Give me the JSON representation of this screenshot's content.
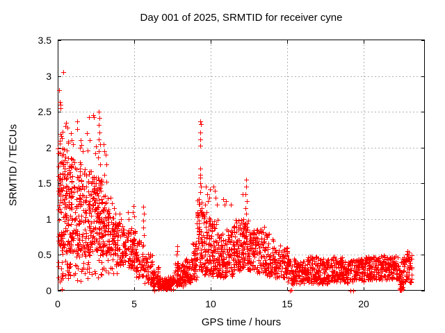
{
  "title": "Day 001 of 2025, SRMTID for receiver cyne",
  "chart_data": {
    "type": "scatter",
    "title": "Day 001 of 2025, SRMTID for receiver cyne",
    "xlabel": "GPS time / hours",
    "ylabel": "SRMTID / TECUs",
    "xlim": [
      0,
      24
    ],
    "ylim": [
      0,
      3.5
    ],
    "xtick_values": [
      0,
      5,
      10,
      15,
      20
    ],
    "xtick_labels": [
      "0",
      "5",
      "10",
      "15",
      "20"
    ],
    "ytick_values": [
      0,
      0.5,
      1,
      1.5,
      2,
      2.5,
      3,
      3.5
    ],
    "ytick_labels": [
      "0",
      "0.5",
      "1",
      "1.5",
      "2",
      "2.5",
      "3",
      "3.5"
    ],
    "grid": true,
    "legend": "none",
    "marker": "plus",
    "marker_size": 7,
    "marker_color": "#ff0000",
    "grid_color": "#b0b0b0",
    "axis_color": "#000000",
    "text_color": "#000000",
    "background": "#ffffff",
    "seed": 11,
    "clusters": [
      {
        "x0": 0.02,
        "x1": 0.3,
        "n": 55,
        "y0": 0.6,
        "y1": 2.2,
        "e": 1.1
      },
      {
        "x0": 0.02,
        "x1": 0.35,
        "n": 12,
        "y0": 0.02,
        "y1": 0.6,
        "e": 1.0
      },
      {
        "x0": 0.3,
        "x1": 0.7,
        "n": 70,
        "y0": 0.55,
        "y1": 2.1,
        "e": 1.2
      },
      {
        "x0": 0.3,
        "x1": 0.7,
        "n": 8,
        "y0": 0.12,
        "y1": 0.55,
        "e": 1.0
      },
      {
        "x0": 0.65,
        "x1": 0.9,
        "n": 12,
        "y0": 0.2,
        "y1": 0.38,
        "e": 1.0
      },
      {
        "x0": 0.7,
        "x1": 1.2,
        "n": 80,
        "y0": 0.55,
        "y1": 1.9,
        "e": 1.2
      },
      {
        "x0": 1.0,
        "x1": 2.0,
        "n": 18,
        "y0": 0.12,
        "y1": 0.5,
        "e": 1.0
      },
      {
        "x0": 1.2,
        "x1": 1.7,
        "n": 75,
        "y0": 0.5,
        "y1": 1.8,
        "e": 1.2
      },
      {
        "x0": 1.7,
        "x1": 2.2,
        "n": 70,
        "y0": 0.5,
        "y1": 1.7,
        "e": 1.2
      },
      {
        "x0": 2.0,
        "x1": 3.0,
        "n": 14,
        "y0": 0.15,
        "y1": 0.5,
        "e": 1.0
      },
      {
        "x0": 2.2,
        "x1": 2.6,
        "n": 65,
        "y0": 0.55,
        "y1": 1.6,
        "e": 1.1
      },
      {
        "x0": 2.6,
        "x1": 2.9,
        "n": 55,
        "y0": 0.55,
        "y1": 1.6,
        "e": 1.1
      },
      {
        "x0": 2.9,
        "x1": 3.3,
        "n": 55,
        "y0": 0.5,
        "y1": 1.35,
        "e": 1.1
      },
      {
        "x0": 3.0,
        "x1": 4.0,
        "n": 10,
        "y0": 0.2,
        "y1": 0.45,
        "e": 1.0
      },
      {
        "x0": 3.3,
        "x1": 3.8,
        "n": 55,
        "y0": 0.5,
        "y1": 1.1,
        "e": 1.1
      },
      {
        "x0": 3.8,
        "x1": 4.3,
        "n": 50,
        "y0": 0.35,
        "y1": 0.95,
        "e": 1.1
      },
      {
        "x0": 4.3,
        "x1": 4.8,
        "n": 45,
        "y0": 0.3,
        "y1": 0.85,
        "e": 1.1
      },
      {
        "x0": 4.8,
        "x1": 5.1,
        "n": 40,
        "y0": 0.3,
        "y1": 0.9,
        "e": 1.2
      },
      {
        "x0": 5.1,
        "x1": 5.6,
        "n": 42,
        "y0": 0.18,
        "y1": 0.7,
        "e": 1.2
      },
      {
        "x0": 5.6,
        "x1": 6.2,
        "n": 45,
        "y0": 0.1,
        "y1": 0.55,
        "e": 1.2
      },
      {
        "x0": 6.2,
        "x1": 6.6,
        "n": 40,
        "y0": 0.05,
        "y1": 0.35,
        "e": 1.2
      },
      {
        "x0": 6.6,
        "x1": 7.6,
        "n": 120,
        "y0": 0.02,
        "y1": 0.2,
        "e": 1.4
      },
      {
        "x0": 7.6,
        "x1": 8.2,
        "n": 65,
        "y0": 0.06,
        "y1": 0.4,
        "e": 1.3
      },
      {
        "x0": 8.2,
        "x1": 8.8,
        "n": 70,
        "y0": 0.1,
        "y1": 0.45,
        "e": 1.2
      },
      {
        "x0": 8.8,
        "x1": 9.1,
        "n": 40,
        "y0": 0.15,
        "y1": 0.68,
        "e": 1.1
      },
      {
        "x0": 9.1,
        "x1": 9.45,
        "n": 55,
        "y0": 0.25,
        "y1": 1.3,
        "e": 1.1
      },
      {
        "x0": 9.45,
        "x1": 10.0,
        "n": 75,
        "y0": 0.22,
        "y1": 1.1,
        "e": 1.2
      },
      {
        "x0": 10.0,
        "x1": 10.5,
        "n": 70,
        "y0": 0.2,
        "y1": 1.0,
        "e": 1.2
      },
      {
        "x0": 10.5,
        "x1": 11.0,
        "n": 70,
        "y0": 0.18,
        "y1": 0.8,
        "e": 1.2
      },
      {
        "x0": 11.0,
        "x1": 11.6,
        "n": 70,
        "y0": 0.2,
        "y1": 0.9,
        "e": 1.2
      },
      {
        "x0": 11.6,
        "x1": 12.1,
        "n": 70,
        "y0": 0.28,
        "y1": 1.0,
        "e": 1.2
      },
      {
        "x0": 12.1,
        "x1": 12.5,
        "n": 55,
        "y0": 0.3,
        "y1": 1.0,
        "e": 1.2
      },
      {
        "x0": 12.5,
        "x1": 13.0,
        "n": 60,
        "y0": 0.28,
        "y1": 0.85,
        "e": 1.2
      },
      {
        "x0": 13.0,
        "x1": 13.6,
        "n": 60,
        "y0": 0.25,
        "y1": 0.9,
        "e": 1.3
      },
      {
        "x0": 13.6,
        "x1": 14.2,
        "n": 60,
        "y0": 0.2,
        "y1": 0.8,
        "e": 1.3
      },
      {
        "x0": 14.2,
        "x1": 15.0,
        "n": 75,
        "y0": 0.18,
        "y1": 0.6,
        "e": 1.2
      },
      {
        "x0": 15.0,
        "x1": 15.6,
        "n": 55,
        "y0": 0.08,
        "y1": 0.45,
        "e": 1.1
      },
      {
        "x0": 15.6,
        "x1": 16.2,
        "n": 60,
        "y0": 0.1,
        "y1": 0.42,
        "e": 1.1
      },
      {
        "x0": 16.2,
        "x1": 17.0,
        "n": 80,
        "y0": 0.1,
        "y1": 0.48,
        "e": 1.1
      },
      {
        "x0": 17.0,
        "x1": 17.8,
        "n": 80,
        "y0": 0.1,
        "y1": 0.45,
        "e": 1.1
      },
      {
        "x0": 17.8,
        "x1": 18.6,
        "n": 80,
        "y0": 0.12,
        "y1": 0.48,
        "e": 1.1
      },
      {
        "x0": 18.6,
        "x1": 19.3,
        "n": 70,
        "y0": 0.1,
        "y1": 0.42,
        "e": 1.1
      },
      {
        "x0": 19.3,
        "x1": 20.0,
        "n": 70,
        "y0": 0.13,
        "y1": 0.45,
        "e": 1.1
      },
      {
        "x0": 20.0,
        "x1": 20.8,
        "n": 75,
        "y0": 0.15,
        "y1": 0.48,
        "e": 1.1
      },
      {
        "x0": 20.8,
        "x1": 21.6,
        "n": 75,
        "y0": 0.15,
        "y1": 0.5,
        "e": 1.1
      },
      {
        "x0": 21.6,
        "x1": 22.3,
        "n": 70,
        "y0": 0.15,
        "y1": 0.5,
        "e": 1.1
      },
      {
        "x0": 22.3,
        "x1": 22.6,
        "n": 28,
        "y0": 0.05,
        "y1": 0.45,
        "e": 1.2
      },
      {
        "x0": 22.35,
        "x1": 22.55,
        "n": 12,
        "y0": 0.0,
        "y1": 0.04,
        "e": 1.0
      },
      {
        "x0": 22.6,
        "x1": 23.15,
        "n": 55,
        "y0": 0.1,
        "y1": 0.55,
        "e": 1.1
      }
    ],
    "outliers": [
      [
        0.35,
        3.05
      ],
      [
        0.1,
        2.8
      ],
      [
        0.13,
        2.64
      ],
      [
        0.2,
        2.6
      ],
      [
        0.16,
        2.55
      ],
      [
        0.3,
        2.22
      ],
      [
        0.5,
        2.3
      ],
      [
        0.55,
        2.35
      ],
      [
        0.62,
        2.28
      ],
      [
        0.85,
        2.2
      ],
      [
        1.25,
        2.37
      ],
      [
        1.28,
        2.26
      ],
      [
        0.92,
        2.1
      ],
      [
        1.02,
        2.05
      ],
      [
        1.45,
        2.0
      ],
      [
        1.5,
        2.1
      ],
      [
        1.56,
        2.04
      ],
      [
        1.62,
        1.95
      ],
      [
        1.9,
        2.2
      ],
      [
        1.95,
        1.96
      ],
      [
        2.06,
        2.42
      ],
      [
        2.1,
        2.1
      ],
      [
        2.3,
        2.45
      ],
      [
        2.36,
        2.42
      ],
      [
        2.46,
        1.92
      ],
      [
        2.52,
        2.02
      ],
      [
        2.67,
        2.5
      ],
      [
        2.74,
        2.41
      ],
      [
        2.7,
        2.32
      ],
      [
        2.72,
        2.21
      ],
      [
        2.68,
        2.11
      ],
      [
        2.76,
        2.05
      ],
      [
        2.7,
        1.95
      ],
      [
        2.64,
        1.86
      ],
      [
        2.78,
        1.76
      ],
      [
        3.0,
        2.05
      ],
      [
        3.06,
        1.95
      ],
      [
        3.12,
        1.9
      ],
      [
        3.16,
        1.76
      ],
      [
        3.05,
        1.62
      ],
      [
        3.2,
        1.52
      ],
      [
        3.45,
        1.3
      ],
      [
        3.55,
        1.22
      ],
      [
        3.7,
        1.15
      ],
      [
        4.05,
        1.08
      ],
      [
        4.15,
        1.0
      ],
      [
        4.6,
        1.1
      ],
      [
        4.63,
        1.0
      ],
      [
        4.95,
        1.18
      ],
      [
        4.92,
        1.1
      ],
      [
        4.98,
        1.04
      ],
      [
        5.6,
        1.17
      ],
      [
        5.62,
        1.08
      ],
      [
        5.58,
        0.98
      ],
      [
        5.61,
        0.88
      ],
      [
        5.63,
        0.78
      ],
      [
        6.3,
        0.0
      ],
      [
        6.33,
        0.02
      ],
      [
        7.8,
        0.62
      ],
      [
        7.82,
        0.55
      ],
      [
        7.78,
        0.5
      ],
      [
        9.33,
        2.37
      ],
      [
        9.35,
        2.33
      ],
      [
        9.33,
        2.21
      ],
      [
        9.34,
        2.11
      ],
      [
        9.33,
        2.03
      ],
      [
        9.32,
        1.71
      ],
      [
        9.34,
        1.62
      ],
      [
        9.3,
        1.58
      ],
      [
        9.33,
        1.5
      ],
      [
        9.36,
        1.45
      ],
      [
        9.3,
        1.38
      ],
      [
        9.62,
        1.2
      ],
      [
        9.7,
        1.45
      ],
      [
        9.76,
        1.35
      ],
      [
        9.82,
        1.25
      ],
      [
        9.9,
        1.3
      ],
      [
        9.95,
        1.42
      ],
      [
        10.2,
        1.45
      ],
      [
        10.28,
        1.4
      ],
      [
        10.33,
        1.3
      ],
      [
        10.4,
        1.2
      ],
      [
        10.8,
        1.28
      ],
      [
        10.92,
        1.2
      ],
      [
        11.0,
        1.25
      ],
      [
        11.3,
        1.2
      ],
      [
        12.1,
        1.35
      ],
      [
        12.27,
        1.15
      ],
      [
        12.28,
        1.35
      ],
      [
        12.3,
        1.55
      ],
      [
        12.32,
        1.45
      ],
      [
        12.35,
        1.25
      ],
      [
        12.33,
        1.08
      ],
      [
        14.55,
        0.63
      ],
      [
        15.2,
        0.0
      ],
      [
        15.25,
        0.01
      ],
      [
        19.15,
        0.0
      ],
      [
        19.3,
        0.0
      ]
    ]
  }
}
